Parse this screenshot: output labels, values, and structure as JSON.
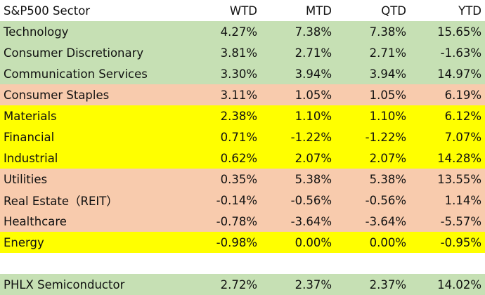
{
  "header": {
    "name": "S&P500 Sector",
    "wtd": "WTD",
    "mtd": "MTD",
    "qtd": "QTD",
    "ytd": "YTD"
  },
  "colors": {
    "green": "#c6e0b4",
    "salmon": "#f8cbad",
    "yellow": "#ffff00",
    "white": "#ffffff"
  },
  "rows": [
    {
      "name": "Technology",
      "wtd": "4.27%",
      "mtd": "7.38%",
      "qtd": "7.38%",
      "ytd": "15.65%",
      "color": "green"
    },
    {
      "name": "Consumer Discretionary",
      "wtd": "3.81%",
      "mtd": "2.71%",
      "qtd": "2.71%",
      "ytd": "-1.63%",
      "color": "green"
    },
    {
      "name": "Communication Services",
      "wtd": "3.30%",
      "mtd": "3.94%",
      "qtd": "3.94%",
      "ytd": "14.97%",
      "color": "green"
    },
    {
      "name": "Consumer Staples",
      "wtd": "3.11%",
      "mtd": "1.05%",
      "qtd": "1.05%",
      "ytd": "6.19%",
      "color": "salmon"
    },
    {
      "name": "Materials",
      "wtd": "2.38%",
      "mtd": "1.10%",
      "qtd": "1.10%",
      "ytd": "6.12%",
      "color": "yellow"
    },
    {
      "name": "Financial",
      "wtd": "0.71%",
      "mtd": "-1.22%",
      "qtd": "-1.22%",
      "ytd": "7.07%",
      "color": "yellow"
    },
    {
      "name": "Industrial",
      "wtd": "0.62%",
      "mtd": "2.07%",
      "qtd": "2.07%",
      "ytd": "14.28%",
      "color": "yellow"
    },
    {
      "name": "Utilities",
      "wtd": "0.35%",
      "mtd": "5.38%",
      "qtd": "5.38%",
      "ytd": "13.55%",
      "color": "salmon"
    },
    {
      "name": "Real Estate（REIT）",
      "wtd": "-0.14%",
      "mtd": "-0.56%",
      "qtd": "-0.56%",
      "ytd": "1.14%",
      "color": "salmon"
    },
    {
      "name": "Healthcare",
      "wtd": "-0.78%",
      "mtd": "-3.64%",
      "qtd": "-3.64%",
      "ytd": "-5.57%",
      "color": "salmon"
    },
    {
      "name": "Energy",
      "wtd": "-0.98%",
      "mtd": "0.00%",
      "qtd": "0.00%",
      "ytd": "-0.95%",
      "color": "yellow"
    }
  ],
  "extra_row": {
    "name": "PHLX Semiconductor",
    "wtd": "2.72%",
    "mtd": "2.37%",
    "qtd": "2.37%",
    "ytd": "14.02%",
    "color": "green"
  }
}
